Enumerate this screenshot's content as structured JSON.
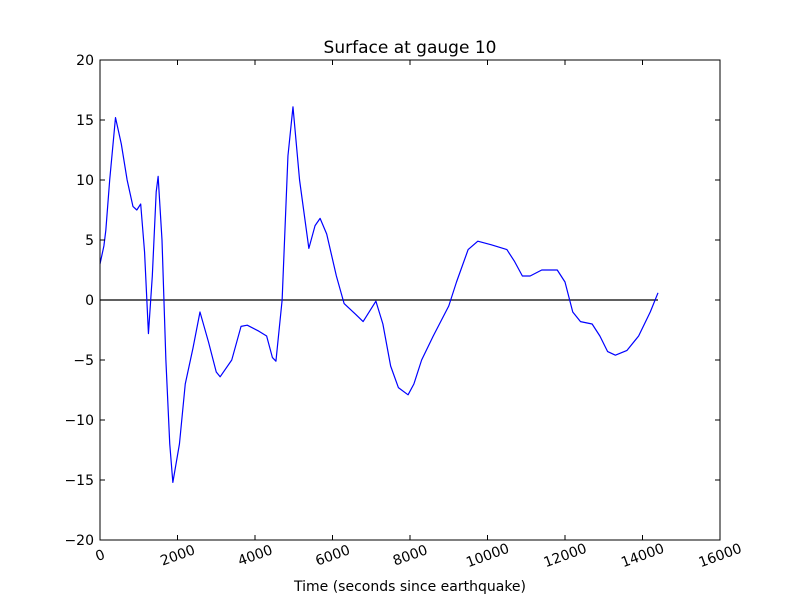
{
  "chart_data": {
    "type": "line",
    "title": "Surface at gauge 10",
    "xlabel": "Time (seconds since earthquake)",
    "xlim": [
      0,
      16000
    ],
    "ylim": [
      -20,
      20
    ],
    "xticks": [
      0,
      2000,
      4000,
      6000,
      8000,
      10000,
      12000,
      14000,
      16000
    ],
    "yticks": [
      {
        "value": -20,
        "label": "−20"
      },
      {
        "value": -15,
        "label": "−15"
      },
      {
        "value": -10,
        "label": "−10"
      },
      {
        "value": -5,
        "label": "−5"
      },
      0,
      5,
      10,
      15,
      20
    ],
    "grid": false,
    "reference_line": {
      "y": 0,
      "x": [
        0,
        14400
      ],
      "color": "#000000"
    },
    "series": [
      {
        "color": "#0000ff",
        "x": [
          0,
          100,
          150,
          250,
          400,
          550,
          700,
          850,
          950,
          1050,
          1150,
          1250,
          1350,
          1450,
          1500,
          1600,
          1700,
          1800,
          1880,
          2050,
          2200,
          2400,
          2580,
          2800,
          3000,
          3100,
          3400,
          3640,
          3800,
          4100,
          4300,
          4450,
          4540,
          4700,
          4850,
          4980,
          5150,
          5390,
          5550,
          5680,
          5850,
          6100,
          6300,
          6600,
          6790,
          7120,
          7300,
          7500,
          7700,
          7950,
          8100,
          8300,
          8600,
          9000,
          9200,
          9500,
          9750,
          10100,
          10500,
          10700,
          10900,
          11100,
          11400,
          11800,
          12000,
          12200,
          12400,
          12700,
          12900,
          13100,
          13300,
          13600,
          13900,
          14200,
          14400
        ],
        "values": [
          3.0,
          4.5,
          5.8,
          10,
          15.2,
          13,
          10,
          7.8,
          7.5,
          8.0,
          4,
          -2.8,
          2,
          9,
          10.3,
          5,
          -5,
          -12,
          -15.2,
          -12,
          -7,
          -4,
          -1,
          -3.5,
          -6,
          -6.4,
          -5,
          -2.2,
          -2.1,
          -2.6,
          -3,
          -4.8,
          -5.1,
          0,
          12,
          16.1,
          10,
          4.3,
          6.2,
          6.8,
          5.5,
          2,
          -0.3,
          -1.2,
          -1.8,
          -0.1,
          -2,
          -5.5,
          -7.3,
          -7.9,
          -7,
          -5,
          -3,
          -0.5,
          1.5,
          4.2,
          4.9,
          4.6,
          4.2,
          3.2,
          2,
          2,
          2.5,
          2.5,
          1.5,
          -1,
          -1.8,
          -2,
          -3,
          -4.3,
          -4.6,
          -4.2,
          -3,
          -1,
          0.6
        ]
      }
    ]
  }
}
